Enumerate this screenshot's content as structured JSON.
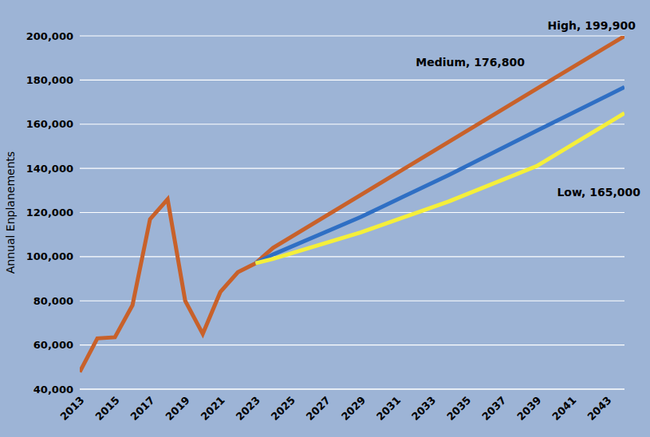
{
  "chart_data": {
    "type": "line",
    "y_label": "Annual Enplanements",
    "xlim": [
      2013,
      2044
    ],
    "xticks": [
      2013,
      2015,
      2017,
      2019,
      2021,
      2023,
      2025,
      2027,
      2029,
      2031,
      2033,
      2035,
      2037,
      2039,
      2041,
      2043
    ],
    "ylim": [
      40000,
      200000
    ],
    "yticks": [
      {
        "value": 40000,
        "label": "40,000"
      },
      {
        "value": 60000,
        "label": "60,000"
      },
      {
        "value": 80000,
        "label": "80,000"
      },
      {
        "value": 100000,
        "label": "100,000"
      },
      {
        "value": 120000,
        "label": "120,000"
      },
      {
        "value": 140000,
        "label": "140,000"
      },
      {
        "value": 160000,
        "label": "160,000"
      },
      {
        "value": 180000,
        "label": "180,000"
      },
      {
        "value": 200000,
        "label": "200,000"
      }
    ],
    "grid": true,
    "series": [
      {
        "color": "#c8612a",
        "x": [
          2013,
          2014,
          2015,
          2016,
          2017,
          2018,
          2019,
          2020,
          2021,
          2022,
          2023
        ],
        "values": [
          47800,
          63000,
          63500,
          78000,
          117000,
          126000,
          80000,
          65000,
          84000,
          93000,
          97000
        ]
      },
      {
        "name": "High",
        "color": "#c8612a",
        "x": [
          2023,
          2024,
          2029,
          2034,
          2039,
          2044
        ],
        "values": [
          97000,
          104000,
          128000,
          152000,
          176000,
          199900
        ]
      },
      {
        "name": "Medium",
        "color": "#2f6fc4",
        "x": [
          2023,
          2024,
          2029,
          2034,
          2039,
          2044
        ],
        "values": [
          97000,
          101000,
          118000,
          137000,
          157000,
          176800
        ]
      },
      {
        "name": "Low",
        "color": "#f5ef3a",
        "x": [
          2023,
          2024,
          2029,
          2034,
          2039,
          2044
        ],
        "values": [
          97000,
          99000,
          111000,
          125000,
          141000,
          165000
        ]
      }
    ],
    "annotations": [
      {
        "text": "High, 199,900",
        "x": 2044,
        "y": 199900
      },
      {
        "text": "Medium, 176,800",
        "x": 2044,
        "y": 176800
      },
      {
        "text": "Low, 165,000",
        "x": 2044,
        "y": 165000
      }
    ]
  }
}
